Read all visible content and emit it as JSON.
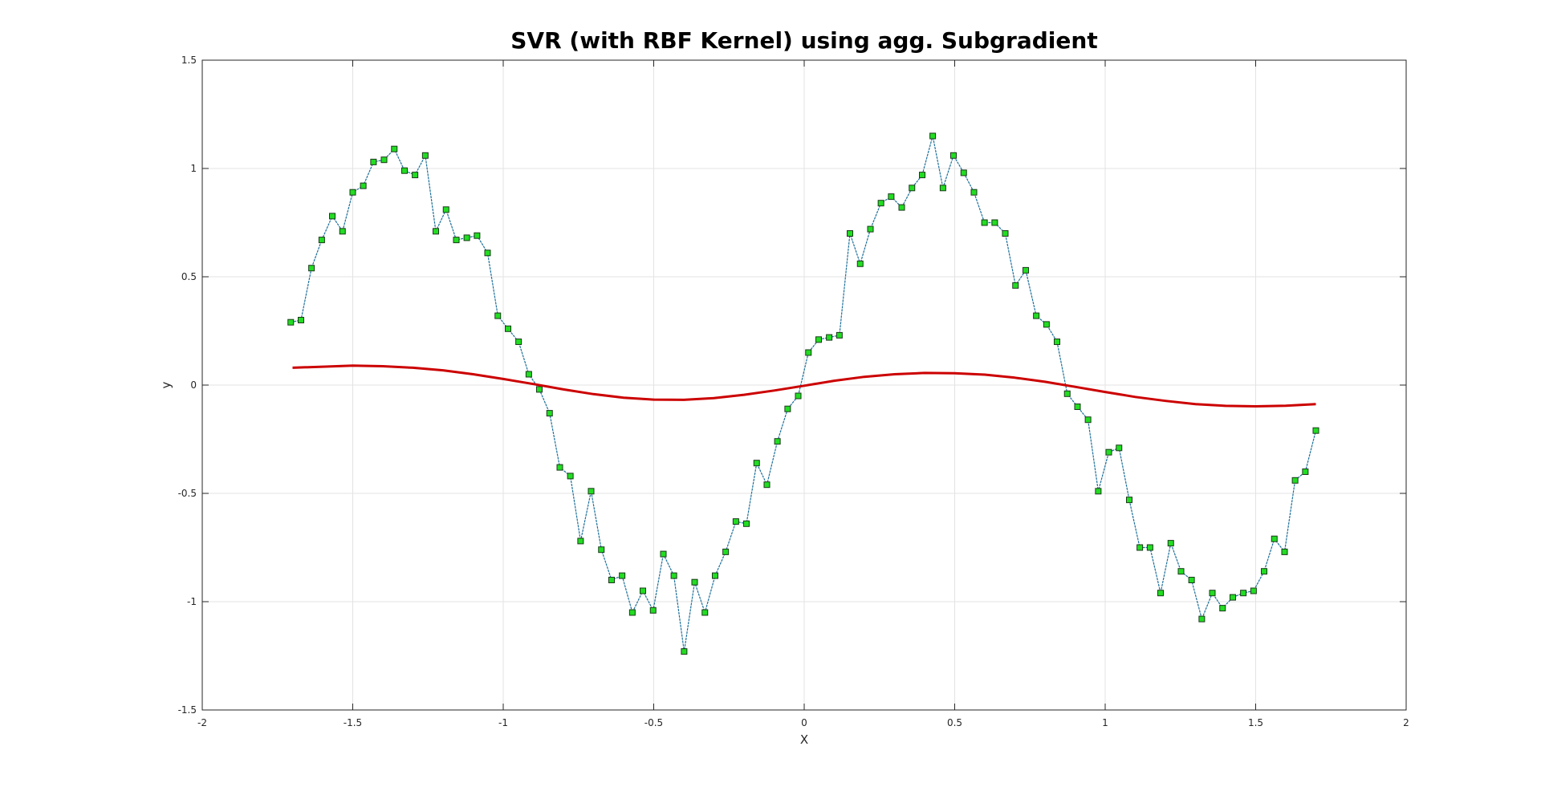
{
  "chart_data": {
    "type": "line",
    "title": "SVR (with RBF Kernel) using agg. Subgradient",
    "xlabel": "X",
    "ylabel": "y",
    "xlim": [
      -2,
      2
    ],
    "ylim": [
      -1.5,
      1.5
    ],
    "xticks": [
      -2,
      -1.5,
      -1,
      -0.5,
      0,
      0.5,
      1,
      1.5,
      2
    ],
    "yticks": [
      -1.5,
      -1,
      -0.5,
      0,
      0.5,
      1,
      1.5
    ],
    "xtick_labels": [
      "-2",
      "-1.5",
      "-1",
      "-0.5",
      "0",
      "0.5",
      "1",
      "1.5",
      "2"
    ],
    "ytick_labels": [
      "-1.5",
      "-1",
      "-0.5",
      "0",
      "0.5",
      "1",
      "1.5"
    ],
    "grid": true,
    "colors": {
      "data": "#1b6f9a",
      "marker": "#22dd22",
      "fit": "#cc0000"
    },
    "series": [
      {
        "x": [
          -1.706,
          -1.672,
          -1.637,
          -1.603,
          -1.568,
          -1.534,
          -1.5,
          -1.465,
          -1.431,
          -1.396,
          -1.362,
          -1.328,
          -1.293,
          -1.259,
          -1.224,
          -1.19,
          -1.156,
          -1.121,
          -1.087,
          -1.052,
          -1.018,
          -0.984,
          -0.949,
          -0.915,
          -0.88,
          -0.846,
          -0.812,
          -0.777,
          -0.743,
          -0.708,
          -0.674,
          -0.64,
          -0.605,
          -0.571,
          -0.536,
          -0.502,
          -0.468,
          -0.433,
          -0.399,
          -0.364,
          -0.33,
          -0.296,
          -0.261,
          -0.227,
          -0.192,
          -0.158,
          -0.124,
          -0.089,
          -0.055,
          -0.02,
          0.014,
          0.048,
          0.083,
          0.117,
          0.152,
          0.186,
          0.22,
          0.255,
          0.289,
          0.324,
          0.358,
          0.392,
          0.427,
          0.461,
          0.496,
          0.53,
          0.564,
          0.599,
          0.633,
          0.668,
          0.702,
          0.736,
          0.771,
          0.805,
          0.84,
          0.874,
          0.908,
          0.943,
          0.977,
          1.012,
          1.046,
          1.08,
          1.115,
          1.149,
          1.184,
          1.218,
          1.252,
          1.287,
          1.321,
          1.356,
          1.39,
          1.424,
          1.459,
          1.493,
          1.528,
          1.562,
          1.596,
          1.631,
          1.665,
          1.7
        ],
        "values": [
          0.29,
          0.3,
          0.54,
          0.67,
          0.78,
          0.71,
          0.89,
          0.92,
          1.03,
          1.04,
          1.09,
          0.99,
          0.97,
          1.06,
          0.71,
          0.81,
          0.67,
          0.68,
          0.69,
          0.61,
          0.32,
          0.26,
          0.2,
          0.05,
          -0.02,
          -0.13,
          -0.38,
          -0.42,
          -0.72,
          -0.49,
          -0.76,
          -0.9,
          -0.88,
          -1.05,
          -0.95,
          -1.04,
          -0.78,
          -0.88,
          -1.23,
          -0.91,
          -1.05,
          -0.88,
          -0.77,
          -0.63,
          -0.64,
          -0.36,
          -0.46,
          -0.26,
          -0.11,
          -0.05,
          0.15,
          0.21,
          0.22,
          0.23,
          0.7,
          0.56,
          0.72,
          0.84,
          0.87,
          0.82,
          0.91,
          0.97,
          1.15,
          0.91,
          1.06,
          0.98,
          0.89,
          0.75,
          0.75,
          0.7,
          0.46,
          0.53,
          0.32,
          0.28,
          0.2,
          -0.04,
          -0.1,
          -0.16,
          -0.49,
          -0.31,
          -0.29,
          -0.53,
          -0.75,
          -0.75,
          -0.96,
          -0.73,
          -0.86,
          -0.9,
          -1.08,
          -0.96,
          -1.03,
          -0.98,
          -0.96,
          -0.95,
          -0.86,
          -0.71,
          -0.77,
          -0.44,
          -0.4,
          -0.21
        ]
      },
      {
        "x": [
          -1.7,
          -1.6,
          -1.5,
          -1.4,
          -1.3,
          -1.2,
          -1.1,
          -1.0,
          -0.9,
          -0.8,
          -0.7,
          -0.6,
          -0.5,
          -0.4,
          -0.3,
          -0.2,
          -0.1,
          0.0,
          0.1,
          0.2,
          0.3,
          0.4,
          0.5,
          0.6,
          0.7,
          0.8,
          0.9,
          1.0,
          1.1,
          1.2,
          1.3,
          1.4,
          1.5,
          1.6,
          1.7
        ],
        "values": [
          0.08,
          0.085,
          0.09,
          0.087,
          0.08,
          0.068,
          0.05,
          0.028,
          0.005,
          -0.02,
          -0.042,
          -0.058,
          -0.067,
          -0.068,
          -0.06,
          -0.045,
          -0.025,
          -0.003,
          0.02,
          0.038,
          0.05,
          0.056,
          0.055,
          0.048,
          0.034,
          0.015,
          -0.008,
          -0.032,
          -0.055,
          -0.073,
          -0.088,
          -0.096,
          -0.098,
          -0.095,
          -0.088
        ]
      }
    ]
  }
}
